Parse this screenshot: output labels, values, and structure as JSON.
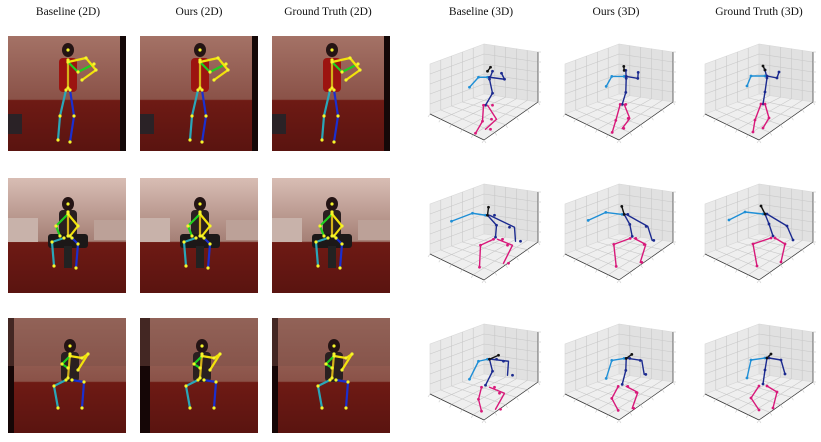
{
  "columns": [
    {
      "label": "Baseline (2D)"
    },
    {
      "label": "Ours (2D)"
    },
    {
      "label": "Ground Truth (2D)"
    },
    {
      "label": "Baseline (3D)"
    },
    {
      "label": "Ours (3D)"
    },
    {
      "label": "Ground Truth (3D)"
    }
  ],
  "rows": [
    {
      "pose": "standing-stretch"
    },
    {
      "pose": "sitting-chair"
    },
    {
      "pose": "crouching"
    }
  ],
  "colors": {
    "left_arm": "#f2e20c",
    "right_arm": "#1fcf1f",
    "torso": "#d4b21a",
    "left_leg": "#1a2fd0",
    "right_leg": "#2aa6b8",
    "joint": "#f6f62a",
    "plot_right": "#1f8fd6",
    "plot_spine": "#1b2a8f",
    "plot_left": "#d8197a",
    "plot_neck": "#111111",
    "pane": "#e9e9e9",
    "grid": "#c8c8c8"
  }
}
